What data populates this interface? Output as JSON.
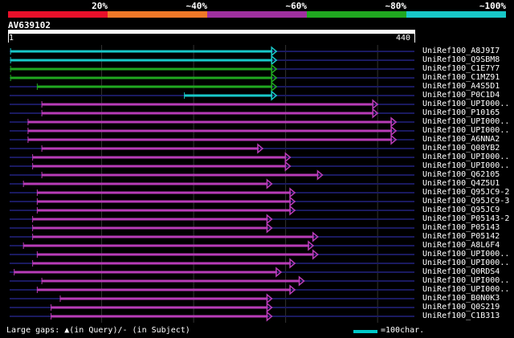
{
  "scale": {
    "labels": [
      "20%",
      "~40%",
      "~60%",
      "~80%",
      "~100%"
    ],
    "colors": [
      "#e8102a",
      "#f07828",
      "#a030a0",
      "#20a820",
      "#18c8c8"
    ]
  },
  "query": {
    "name": "AV639102",
    "start": "1",
    "end": "440"
  },
  "colors": {
    "cyan": "#18c8c8",
    "green": "#20a820",
    "orange": "#f07828",
    "magenta": "#b83cb8",
    "grid": "#1a1a60"
  },
  "hits": [
    {
      "label": "UniRef100_A8J9I7",
      "color": "cyan",
      "start": 1,
      "end": 290
    },
    {
      "label": "UniRef100_Q9SBM8",
      "color": "cyan",
      "start": 1,
      "end": 290
    },
    {
      "label": "UniRef100_C1E7Y7",
      "color": "green",
      "start": 1,
      "end": 290
    },
    {
      "label": "UniRef100_C1MZ91",
      "color": "green",
      "start": 1,
      "end": 290
    },
    {
      "label": "UniRef100_A4S5D1",
      "color": "green",
      "start": 30,
      "end": 290
    },
    {
      "label": "UniRef100_P0C1D4",
      "color": "cyan",
      "start": 190,
      "end": 290
    },
    {
      "label": "UniRef100_UPI000..",
      "color": "magenta",
      "start": 35,
      "end": 400
    },
    {
      "label": "UniRef100_P10165",
      "color": "magenta",
      "start": 35,
      "end": 400
    },
    {
      "label": "UniRef100_UPI000..",
      "color": "magenta",
      "start": 20,
      "end": 420
    },
    {
      "label": "UniRef100_UPI000..",
      "color": "magenta",
      "start": 20,
      "end": 420
    },
    {
      "label": "UniRef100_A6NNA2",
      "color": "magenta",
      "start": 20,
      "end": 420
    },
    {
      "label": "UniRef100_Q08YB2",
      "color": "magenta",
      "start": 35,
      "end": 275
    },
    {
      "label": "UniRef100_UPI000..",
      "color": "magenta",
      "start": 25,
      "end": 305
    },
    {
      "label": "UniRef100_UPI000..",
      "color": "magenta",
      "start": 25,
      "end": 305
    },
    {
      "label": "UniRef100_Q62105",
      "color": "magenta",
      "start": 35,
      "end": 340
    },
    {
      "label": "UniRef100_Q4Z5U1",
      "color": "magenta",
      "start": 15,
      "end": 285
    },
    {
      "label": "UniRef100_Q95JC9-2",
      "color": "magenta",
      "start": 30,
      "end": 310
    },
    {
      "label": "UniRef100_Q95JC9-3",
      "color": "magenta",
      "start": 30,
      "end": 310
    },
    {
      "label": "UniRef100_Q95JC9",
      "color": "magenta",
      "start": 30,
      "end": 310
    },
    {
      "label": "UniRef100_P05143-2",
      "color": "magenta",
      "start": 25,
      "end": 285
    },
    {
      "label": "UniRef100_P05143",
      "color": "magenta",
      "start": 25,
      "end": 285
    },
    {
      "label": "UniRef100_P05142",
      "color": "magenta",
      "start": 25,
      "end": 335
    },
    {
      "label": "UniRef100_A8L6F4",
      "color": "magenta",
      "start": 15,
      "end": 330
    },
    {
      "label": "UniRef100_UPI000..",
      "color": "magenta",
      "start": 30,
      "end": 335
    },
    {
      "label": "UniRef100_UPI000..",
      "color": "magenta",
      "start": 25,
      "end": 310
    },
    {
      "label": "UniRef100_Q0RDS4",
      "color": "magenta",
      "start": 5,
      "end": 295
    },
    {
      "label": "UniRef100_UPI000..",
      "color": "magenta",
      "start": 35,
      "end": 320
    },
    {
      "label": "UniRef100_UPI000..",
      "color": "magenta",
      "start": 30,
      "end": 310
    },
    {
      "label": "UniRef100_B0N0K3",
      "color": "magenta",
      "start": 55,
      "end": 285
    },
    {
      "label": "UniRef100_Q0S219",
      "color": "magenta",
      "start": 45,
      "end": 285
    },
    {
      "label": "UniRef100_C1B313",
      "color": "magenta",
      "start": 45,
      "end": 285
    }
  ],
  "legend": {
    "gaps_text": "Large gaps: ▲(in Query)/- (in Subject)",
    "bar_label": "=100char."
  }
}
